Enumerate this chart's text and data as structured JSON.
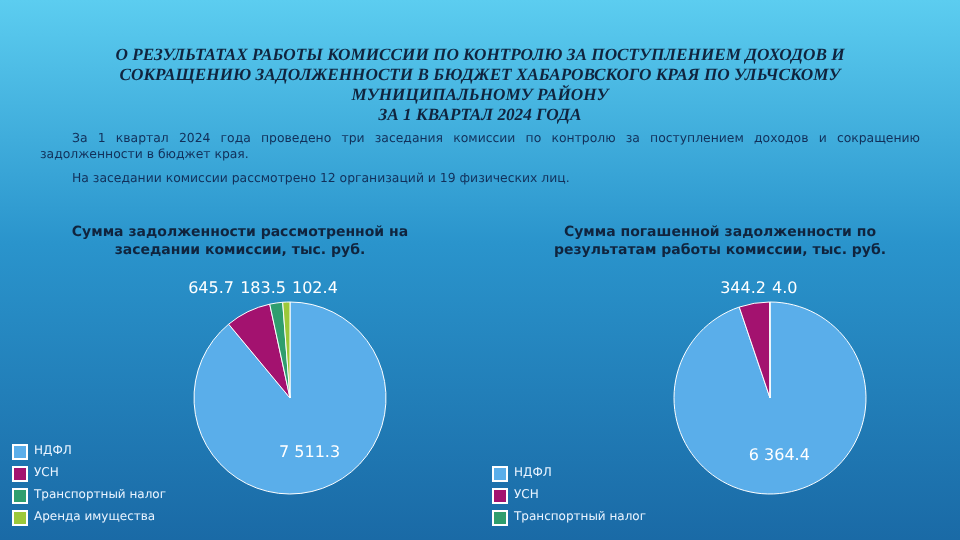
{
  "chart_data": [
    {
      "type": "other",
      "title": "О РЕЗУЛЬТАТАХ РАБОТЫ КОМИССИИ ПО КОНТРОЛЮ ЗА ПОСТУПЛЕНИЕМ ДОХОДОВ И СОКРАЩЕНИЮ ЗАДОЛЖЕННОСТИ В БЮДЖЕТ ХАБАРОВСКОГО КРАЯ ПО УЛЬЧСКОМУ МУНИЦИПАЛЬНОМУ РАЙОНУ",
      "subtitle": "ЗА 1 КВАРТАЛ 2024 ГОДА",
      "annotations": [
        "За 1 квартал 2024 года проведено три заседания комиссии по контролю за поступлением доходов и сокращению задолженности в бюджет края.",
        "На заседании комиссии рассмотрено 12 организаций и 19 физических лиц."
      ]
    },
    {
      "type": "pie",
      "title": "Сумма задолженности рассмотренной на заседании комиссии, тыс. руб.",
      "categories": [
        "НДФЛ",
        "УСН",
        "Транспортный налог",
        "Аренда имущества"
      ],
      "values": [
        7511.3,
        645.7,
        183.5,
        102.4
      ],
      "value_labels": [
        "7 511.3",
        "645.7",
        "183.5",
        "102.4"
      ],
      "colors": [
        "#5aaeea",
        "#a3126f",
        "#2f9e6e",
        "#9cc83a"
      ],
      "legend": "bottom left"
    },
    {
      "type": "pie",
      "title": "Сумма погашенной задолженности по результатам работы комиссии, тыс. руб.",
      "categories": [
        "НДФЛ",
        "УСН",
        "Транспортный налог"
      ],
      "values": [
        6364.4,
        344.2,
        4.0
      ],
      "value_labels": [
        "6 364.4",
        "344.2",
        "4.0"
      ],
      "colors": [
        "#5aaeea",
        "#a3126f",
        "#2f9e6e"
      ],
      "legend": "bottom left"
    }
  ]
}
